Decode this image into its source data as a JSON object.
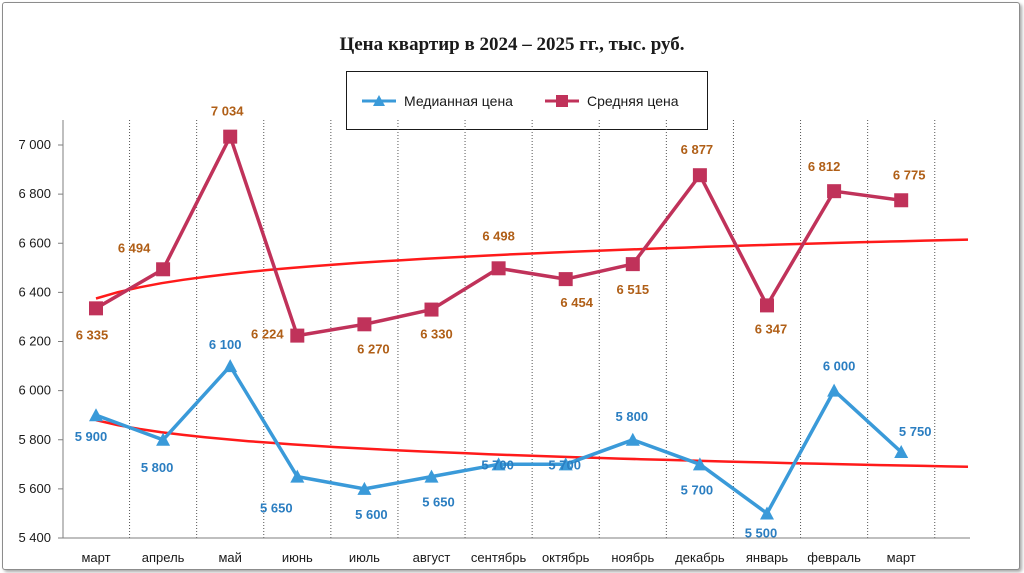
{
  "chart_data": {
    "type": "line",
    "title": "Цена квартир в 2024 – 2025 гг., тыс. руб.",
    "categories": [
      "март",
      "апрель",
      "май",
      "июнь",
      "июль",
      "август",
      "сентябрь",
      "октябрь",
      "ноябрь",
      "декабрь",
      "январь",
      "февраль",
      "март"
    ],
    "yticks": [
      "7 000",
      "6 800",
      "6 600",
      "6 400",
      "6 200",
      "6 000",
      "5 800",
      "5 600",
      "5 400"
    ],
    "ylim": [
      5400,
      7000
    ],
    "grid": "vertical dotted lines",
    "legend_position": "top-center",
    "series": [
      {
        "name": "Медианная цена",
        "color": "#3a9ad9",
        "marker": "triangle",
        "values": [
          5900,
          5800,
          6100,
          5650,
          5600,
          5650,
          5700,
          5700,
          5800,
          5700,
          5500,
          6000,
          5750
        ],
        "labels": [
          "5 900",
          "5 800",
          "6 100",
          "5 650",
          "5 600",
          "5 650",
          "5 700",
          "5 700",
          "5 800",
          "5 700",
          "5 500",
          "6 000",
          "5 750"
        ]
      },
      {
        "name": "Средняя цена",
        "color": "#c0325a",
        "marker": "square",
        "values": [
          6335,
          6494,
          7034,
          6224,
          6270,
          6330,
          6498,
          6454,
          6515,
          6877,
          6347,
          6812,
          6775
        ],
        "labels": [
          "6 335",
          "6 494",
          "7 034",
          "6 224",
          "6 270",
          "6 330",
          "6 498",
          "6 454",
          "6 515",
          "6 877",
          "6 347",
          "6 812",
          "6 775"
        ]
      }
    ],
    "trendlines": [
      {
        "type": "logarithmic",
        "of": "Средняя цена",
        "color": "#ff1a1a",
        "start": 6375,
        "end": 6615
      },
      {
        "type": "logarithmic",
        "of": "Медианная цена",
        "color": "#ff1a1a",
        "start": 5880,
        "end": 5690
      }
    ],
    "label_colors": {
      "median": "#2b7ec1",
      "average": "#b05f17"
    }
  }
}
